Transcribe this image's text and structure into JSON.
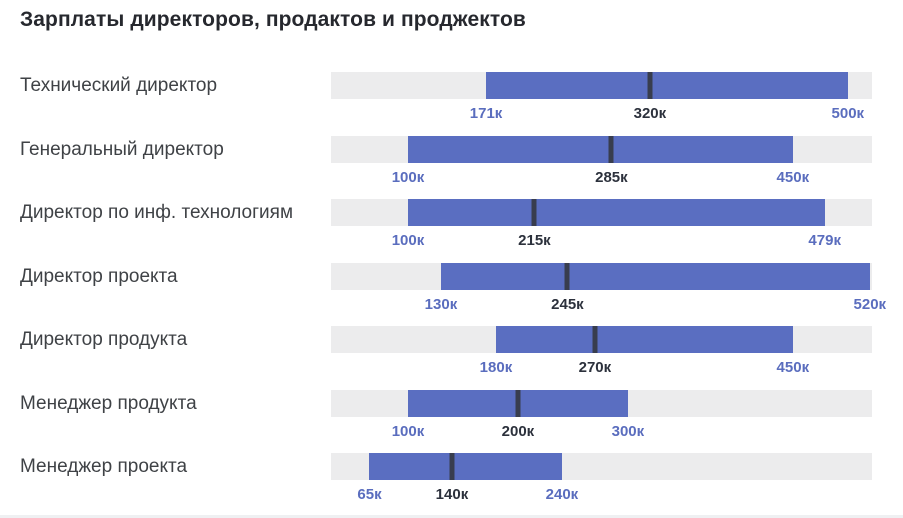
{
  "page": {
    "title": "Зарплаты директоров, продактов и проджектов"
  },
  "colors": {
    "background": "#ffffff",
    "title": "#26282e",
    "row_label": "#3f4246",
    "track": "#ececed",
    "bar": "#5a6ec1",
    "median_marker": "#383d4e",
    "value_min_max": "#5a6dbe",
    "value_median": "#2c313c",
    "bottom_strip": "#eff0f2"
  },
  "chart_data": {
    "type": "bar",
    "subtype": "horizontal-range-bars-with-median-marker",
    "title": "Зарплаты директоров, продактов и проджектов",
    "unit_suffix": "к",
    "axis_range": [
      30,
      522
    ],
    "grid": false,
    "legend": false,
    "categories": [
      "Технический директор",
      "Генеральный директор",
      "Директор по инф. технологиям",
      "Директор проекта",
      "Директор продукта",
      "Менеджер продукта",
      "Менеджер проекта"
    ],
    "series": [
      {
        "name": "min",
        "values": [
          171,
          100,
          100,
          130,
          180,
          100,
          65
        ]
      },
      {
        "name": "median",
        "values": [
          320,
          285,
          215,
          245,
          270,
          200,
          140
        ]
      },
      {
        "name": "max",
        "values": [
          500,
          450,
          479,
          520,
          450,
          300,
          240
        ]
      }
    ],
    "rows": [
      {
        "label": "Технический директор",
        "min": 171,
        "median": 320,
        "max": 500,
        "min_label": "171к",
        "median_label": "320к",
        "max_label": "500к"
      },
      {
        "label": "Генеральный директор",
        "min": 100,
        "median": 285,
        "max": 450,
        "min_label": "100к",
        "median_label": "285к",
        "max_label": "450к"
      },
      {
        "label": "Директор по инф. технологиям",
        "min": 100,
        "median": 215,
        "max": 479,
        "min_label": "100к",
        "median_label": "215к",
        "max_label": "479к"
      },
      {
        "label": "Директор проекта",
        "min": 130,
        "median": 245,
        "max": 520,
        "min_label": "130к",
        "median_label": "245к",
        "max_label": "520к"
      },
      {
        "label": "Директор продукта",
        "min": 180,
        "median": 270,
        "max": 450,
        "min_label": "180к",
        "median_label": "270к",
        "max_label": "450к"
      },
      {
        "label": "Менеджер продукта",
        "min": 100,
        "median": 200,
        "max": 300,
        "min_label": "100к",
        "median_label": "200к",
        "max_label": "300к"
      },
      {
        "label": "Менеджер проекта",
        "min": 65,
        "median": 140,
        "max": 240,
        "min_label": "65к",
        "median_label": "140к",
        "max_label": "240к"
      }
    ]
  }
}
